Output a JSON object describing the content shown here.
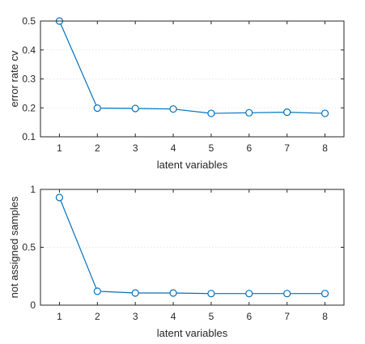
{
  "chart_data": [
    {
      "type": "line",
      "title": "",
      "xlabel": "latent variables",
      "ylabel": "error rate cv",
      "x": [
        1,
        2,
        3,
        4,
        5,
        6,
        7,
        8
      ],
      "xlim": [
        0.5,
        8.5
      ],
      "ylim": [
        0.1,
        0.5
      ],
      "xticks": [
        1,
        2,
        3,
        4,
        5,
        6,
        7,
        8
      ],
      "yticks": [
        0.1,
        0.2,
        0.3,
        0.4,
        0.5
      ],
      "grid": true,
      "marker": "circle-open",
      "series": [
        {
          "values": [
            0.5,
            0.199,
            0.198,
            0.196,
            0.181,
            0.183,
            0.185,
            0.181
          ],
          "color": "#0072BD"
        }
      ]
    },
    {
      "type": "line",
      "title": "",
      "xlabel": "latent variables",
      "ylabel": "not assigned samples",
      "x": [
        1,
        2,
        3,
        4,
        5,
        6,
        7,
        8
      ],
      "xlim": [
        0.5,
        8.5
      ],
      "ylim": [
        0,
        1
      ],
      "xticks": [
        1,
        2,
        3,
        4,
        5,
        6,
        7,
        8
      ],
      "yticks": [
        0,
        0.5,
        1
      ],
      "grid": true,
      "marker": "circle-open",
      "series": [
        {
          "values": [
            0.93,
            0.12,
            0.105,
            0.105,
            0.1,
            0.1,
            0.1,
            0.1
          ],
          "color": "#0072BD"
        }
      ]
    }
  ]
}
